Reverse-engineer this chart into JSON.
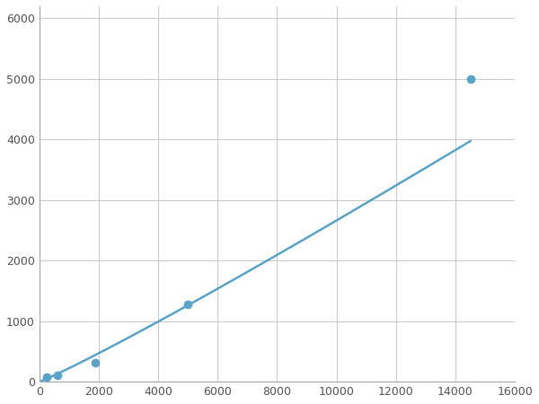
{
  "x_data": [
    250,
    625,
    1875,
    5000,
    14500
  ],
  "y_data": [
    75,
    100,
    310,
    1280,
    5000
  ],
  "line_color": "#5ba3c9",
  "marker_color": "#5ba3c9",
  "marker_size": 7,
  "line_width": 1.8,
  "xlim": [
    0,
    16000
  ],
  "ylim": [
    0,
    6200
  ],
  "xticks": [
    0,
    2000,
    4000,
    6000,
    8000,
    10000,
    12000,
    14000,
    16000
  ],
  "yticks": [
    0,
    1000,
    2000,
    3000,
    4000,
    5000,
    6000
  ],
  "grid_color": "#cccccc",
  "bg_color": "#ffffff",
  "figsize": [
    6.0,
    4.5
  ],
  "dpi": 100
}
